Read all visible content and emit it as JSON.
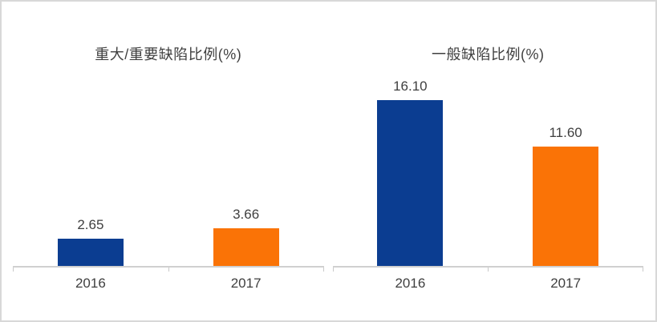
{
  "frame": {
    "background": "#FFFFFF",
    "border_color": "#D8D8D8",
    "axis_color": "#D0D0D0"
  },
  "chart_data": [
    {
      "type": "bar",
      "title": "重大/重要缺陷比例(%)",
      "categories": [
        "2016",
        "2017"
      ],
      "values": [
        2.65,
        3.66
      ],
      "data_labels": [
        "2.65",
        "3.66"
      ],
      "colors": [
        "#0B3D91",
        "#FA7306"
      ],
      "xlabel": "",
      "ylabel": "",
      "ylim": [
        0,
        19.5
      ],
      "grid": false,
      "legend": "none",
      "y_axis_visible": false
    },
    {
      "type": "bar",
      "title": "一般缺陷比例(%)",
      "categories": [
        "2016",
        "2017"
      ],
      "values": [
        16.1,
        11.6
      ],
      "data_labels": [
        "16.10",
        "11.60"
      ],
      "colors": [
        "#0B3D91",
        "#FA7306"
      ],
      "xlabel": "",
      "ylabel": "",
      "ylim": [
        0,
        19.5
      ],
      "grid": false,
      "legend": "none",
      "y_axis_visible": false
    }
  ]
}
